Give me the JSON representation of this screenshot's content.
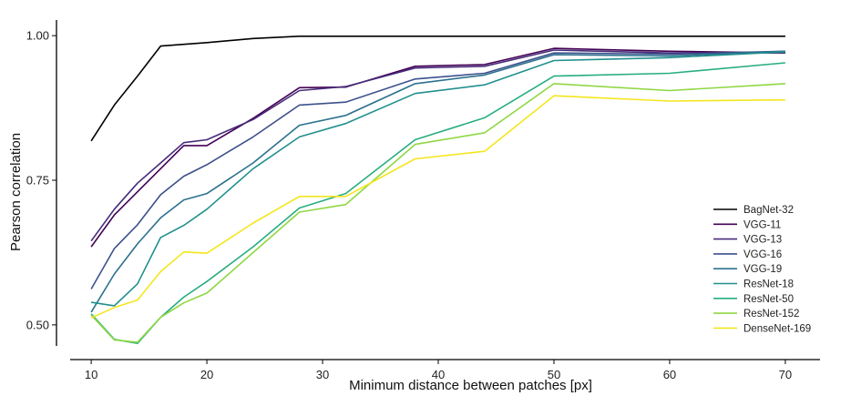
{
  "chart_data": {
    "type": "line",
    "title": "",
    "xlabel": "Minimum distance between patches [px]",
    "ylabel": "Pearson correlation",
    "xlim": [
      7,
      73
    ],
    "ylim": [
      0.44,
      1.027
    ],
    "xticks": [
      10,
      20,
      30,
      40,
      50,
      60,
      70
    ],
    "xtick_labels": [
      "10",
      "20",
      "30",
      "40",
      "50",
      "60",
      "70"
    ],
    "yticks": [
      0.5,
      0.75,
      1.0
    ],
    "ytick_labels": [
      "0.50",
      "0.75",
      "1.00"
    ],
    "grid": false,
    "legend_position": "bottom-right",
    "x": [
      10,
      12,
      14,
      16,
      18,
      20,
      24,
      28,
      32,
      38,
      44,
      50,
      60,
      70
    ],
    "series": [
      {
        "name": "BagNet-32",
        "color": "#000000",
        "values": [
          0.818,
          0.88,
          0.93,
          0.982,
          0.985,
          0.988,
          0.995,
          0.999,
          0.999,
          0.999,
          0.999,
          0.999,
          0.999,
          0.999
        ]
      },
      {
        "name": "VGG-11",
        "color": "#440154",
        "values": [
          0.635,
          0.69,
          0.73,
          0.77,
          0.81,
          0.81,
          0.857,
          0.91,
          0.911,
          0.947,
          0.95,
          0.978,
          0.973,
          0.97
        ]
      },
      {
        "name": "VGG-13",
        "color": "#472c7a",
        "values": [
          0.645,
          0.7,
          0.745,
          0.78,
          0.815,
          0.82,
          0.855,
          0.905,
          0.912,
          0.944,
          0.947,
          0.975,
          0.97,
          0.97
        ]
      },
      {
        "name": "VGG-16",
        "color": "#3b518b",
        "values": [
          0.562,
          0.632,
          0.673,
          0.725,
          0.757,
          0.777,
          0.825,
          0.88,
          0.885,
          0.925,
          0.935,
          0.97,
          0.968,
          0.973
        ]
      },
      {
        "name": "VGG-19",
        "color": "#2c718e",
        "values": [
          0.522,
          0.588,
          0.64,
          0.685,
          0.716,
          0.727,
          0.78,
          0.845,
          0.862,
          0.917,
          0.932,
          0.967,
          0.965,
          0.973
        ]
      },
      {
        "name": "ResNet-18",
        "color": "#21908d",
        "values": [
          0.539,
          0.533,
          0.571,
          0.651,
          0.672,
          0.7,
          0.77,
          0.825,
          0.848,
          0.9,
          0.915,
          0.957,
          0.962,
          0.972
        ]
      },
      {
        "name": "ResNet-50",
        "color": "#27ad81",
        "values": [
          0.519,
          0.475,
          0.468,
          0.513,
          0.548,
          0.575,
          0.635,
          0.702,
          0.727,
          0.82,
          0.858,
          0.93,
          0.935,
          0.953
        ]
      },
      {
        "name": "ResNet-152",
        "color": "#8fd744",
        "values": [
          0.517,
          0.474,
          0.47,
          0.513,
          0.538,
          0.555,
          0.625,
          0.695,
          0.708,
          0.812,
          0.832,
          0.917,
          0.905,
          0.917
        ]
      },
      {
        "name": "DenseNet-169",
        "color": "#f4e61e",
        "values": [
          0.512,
          0.53,
          0.543,
          0.592,
          0.626,
          0.624,
          0.676,
          0.722,
          0.722,
          0.787,
          0.8,
          0.896,
          0.887,
          0.889
        ]
      }
    ]
  }
}
